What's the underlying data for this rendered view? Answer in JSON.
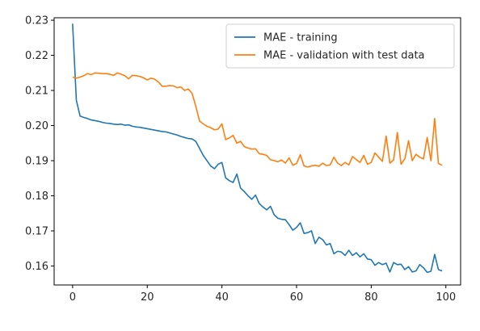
{
  "chart_data": {
    "type": "line",
    "title": "",
    "xlabel": "",
    "ylabel": "",
    "xlim": [
      -4.95,
      103.95
    ],
    "ylim": [
      0.1546,
      0.2307
    ],
    "x_ticks": [
      0,
      20,
      40,
      60,
      80,
      100
    ],
    "x_tick_labels": [
      "0",
      "20",
      "40",
      "60",
      "80",
      "100"
    ],
    "y_ticks": [
      0.16,
      0.17,
      0.18,
      0.19,
      0.2,
      0.21,
      0.22,
      0.23
    ],
    "y_tick_labels": [
      "0.16",
      "0.17",
      "0.18",
      "0.19",
      "0.20",
      "0.21",
      "0.22",
      "0.23"
    ],
    "grid": false,
    "legend": "top-right",
    "series": [
      {
        "name": "MAE - training",
        "color": "#1f77b4",
        "values": [
          0.229,
          0.2072,
          0.2027,
          0.2023,
          0.202,
          0.2016,
          0.2014,
          0.2012,
          0.2009,
          0.2007,
          0.2006,
          0.2004,
          0.2003,
          0.2004,
          0.2001,
          0.2002,
          0.1998,
          0.1996,
          0.1995,
          0.1993,
          0.1991,
          0.1989,
          0.1987,
          0.1985,
          0.1983,
          0.1982,
          0.1979,
          0.1976,
          0.1973,
          0.1969,
          0.1966,
          0.1963,
          0.1962,
          0.1955,
          0.1935,
          0.1915,
          0.19,
          0.1885,
          0.1877,
          0.189,
          0.1895,
          0.1851,
          0.1843,
          0.1838,
          0.1862,
          0.1822,
          0.1812,
          0.18,
          0.179,
          0.1802,
          0.1778,
          0.1768,
          0.176,
          0.177,
          0.1746,
          0.1736,
          0.1733,
          0.1732,
          0.1718,
          0.1702,
          0.171,
          0.1723,
          0.1693,
          0.1695,
          0.17,
          0.1664,
          0.1682,
          0.1675,
          0.166,
          0.1664,
          0.1635,
          0.1642,
          0.164,
          0.163,
          0.1645,
          0.163,
          0.1638,
          0.1626,
          0.1635,
          0.162,
          0.1618,
          0.1602,
          0.161,
          0.1604,
          0.1608,
          0.1583,
          0.161,
          0.1604,
          0.1605,
          0.159,
          0.1598,
          0.1583,
          0.1586,
          0.1604,
          0.1595,
          0.1582,
          0.1585,
          0.1633,
          0.159,
          0.1586
        ]
      },
      {
        "name": "MAE - validation with test data",
        "color": "#ff7f0e",
        "values": [
          0.2138,
          0.2135,
          0.2138,
          0.2142,
          0.2148,
          0.2145,
          0.215,
          0.2149,
          0.2148,
          0.2148,
          0.2146,
          0.2143,
          0.215,
          0.2146,
          0.2142,
          0.2133,
          0.2143,
          0.2142,
          0.214,
          0.2136,
          0.213,
          0.2135,
          0.2132,
          0.2124,
          0.2112,
          0.2112,
          0.2114,
          0.2113,
          0.2108,
          0.211,
          0.21,
          0.2104,
          0.2092,
          0.2055,
          0.2013,
          0.2005,
          0.1998,
          0.1994,
          0.1988,
          0.199,
          0.2005,
          0.196,
          0.1965,
          0.1972,
          0.195,
          0.1955,
          0.194,
          0.1936,
          0.1933,
          0.1934,
          0.192,
          0.1918,
          0.1915,
          0.1903,
          0.19,
          0.1897,
          0.1902,
          0.1893,
          0.1908,
          0.1887,
          0.1892,
          0.1917,
          0.1885,
          0.1882,
          0.1885,
          0.1887,
          0.1884,
          0.1893,
          0.1886,
          0.1888,
          0.191,
          0.1893,
          0.1886,
          0.1895,
          0.1888,
          0.1912,
          0.1903,
          0.1895,
          0.1915,
          0.189,
          0.1895,
          0.1922,
          0.191,
          0.1898,
          0.197,
          0.1893,
          0.1902,
          0.198,
          0.189,
          0.1905,
          0.1957,
          0.19,
          0.1918,
          0.191,
          0.1905,
          0.1966,
          0.19,
          0.202,
          0.1892,
          0.1887
        ]
      }
    ]
  }
}
